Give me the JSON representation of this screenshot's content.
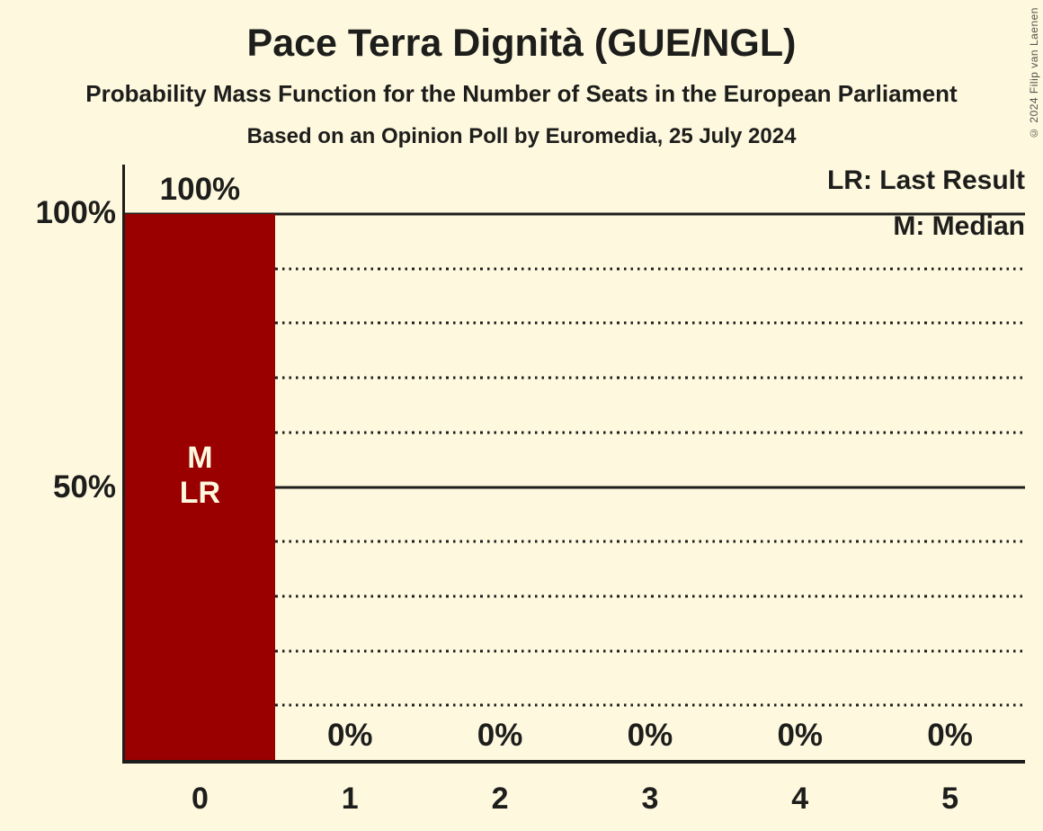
{
  "copyright": "© 2024 Filip van Laenen",
  "chart_data": {
    "type": "bar",
    "title": "Pace Terra Dignità (GUE/NGL)",
    "subtitle": "Probability Mass Function for the Number of Seats in the European Parliament",
    "source_line": "Based on an Opinion Poll by Euromedia, 25 July 2024",
    "categories": [
      "0",
      "1",
      "2",
      "3",
      "4",
      "5"
    ],
    "values": [
      100,
      0,
      0,
      0,
      0,
      0
    ],
    "value_labels": [
      "100%",
      "0%",
      "0%",
      "0%",
      "0%",
      "0%"
    ],
    "ylim": [
      0,
      100
    ],
    "ytick_values": [
      100,
      50
    ],
    "ytick_labels": [
      "100%",
      "50%"
    ],
    "gridlines": {
      "solid_pct": [
        100,
        50
      ],
      "dotted_pct": [
        90,
        80,
        70,
        60,
        40,
        30,
        20,
        10
      ]
    },
    "grid": true,
    "legend_position": "top-right",
    "legend": [
      {
        "abbr": "LR",
        "label": "LR: Last Result"
      },
      {
        "abbr": "M",
        "label": "M: Median"
      }
    ],
    "bar_annotations": [
      {
        "bar_index": 0,
        "lines": [
          "M",
          "LR"
        ]
      }
    ],
    "colors": {
      "background": "#FDF8DE",
      "bar": "#9A0000",
      "text": "#1D1D1B",
      "bar_annotation_text": "#FDF8DE",
      "copyright_text": "#55524B"
    }
  }
}
